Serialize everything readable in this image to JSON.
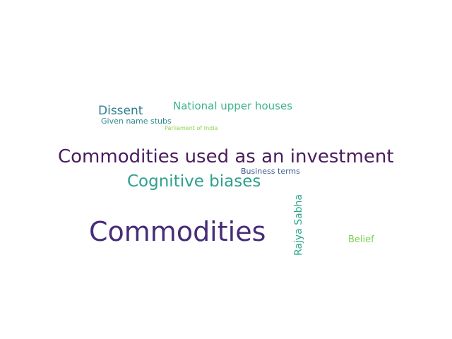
{
  "words": [
    {
      "text": "Commodities",
      "color": "#472c7a"
    },
    {
      "text": "Commodities used as an investment",
      "color": "#4a1c5e"
    },
    {
      "text": "Cognitive biases",
      "color": "#2fa08c"
    },
    {
      "text": "Dissent",
      "color": "#2e7f91"
    },
    {
      "text": "National upper houses",
      "color": "#3fb488"
    },
    {
      "text": "Given name stubs",
      "color": "#2e8a8f"
    },
    {
      "text": "Parliament of India",
      "color": "#8fd14f"
    },
    {
      "text": "Business terms",
      "color": "#3c5a90"
    },
    {
      "text": "Rajya Sabha",
      "color": "#2aa58a"
    },
    {
      "text": "Belief",
      "color": "#7ad151"
    }
  ]
}
